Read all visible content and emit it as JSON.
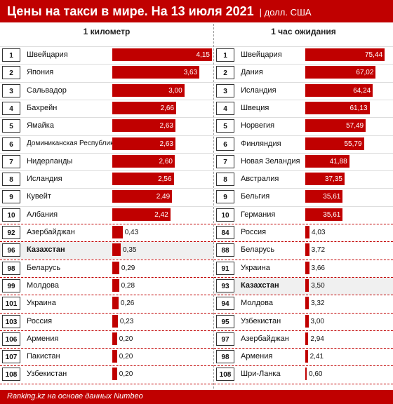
{
  "header": {
    "title": "Цены на такси в мире. На 13 июля 2021",
    "unit": "| долл. США"
  },
  "footer": {
    "source": "Ranking.kz на основе данных Numbeo"
  },
  "chart_data": [
    {
      "type": "bar",
      "title": "1 километр",
      "xlim": [
        0,
        4.15
      ],
      "rows": [
        {
          "rank": "1",
          "country": "Швейцария",
          "value": 4.15,
          "label": "4,15"
        },
        {
          "rank": "2",
          "country": "Япония",
          "value": 3.63,
          "label": "3,63"
        },
        {
          "rank": "3",
          "country": "Сальвадор",
          "value": 3.0,
          "label": "3,00"
        },
        {
          "rank": "4",
          "country": "Бахрейн",
          "value": 2.66,
          "label": "2,66"
        },
        {
          "rank": "5",
          "country": "Ямайка",
          "value": 2.63,
          "label": "2,63"
        },
        {
          "rank": "6",
          "country": "Доминиканская Республика",
          "value": 2.63,
          "label": "2,63"
        },
        {
          "rank": "7",
          "country": "Нидерланды",
          "value": 2.6,
          "label": "2,60"
        },
        {
          "rank": "8",
          "country": "Исландия",
          "value": 2.56,
          "label": "2,56"
        },
        {
          "rank": "9",
          "country": "Кувейт",
          "value": 2.49,
          "label": "2,49"
        },
        {
          "rank": "10",
          "country": "Албания",
          "value": 2.42,
          "label": "2,42"
        },
        {
          "rank": "92",
          "country": "Азербайджан",
          "value": 0.43,
          "label": "0,43"
        },
        {
          "rank": "96",
          "country": "Казахстан",
          "value": 0.35,
          "label": "0,35",
          "highlight": true
        },
        {
          "rank": "98",
          "country": "Беларусь",
          "value": 0.29,
          "label": "0,29"
        },
        {
          "rank": "99",
          "country": "Молдова",
          "value": 0.28,
          "label": "0,28"
        },
        {
          "rank": "101",
          "country": "Украина",
          "value": 0.26,
          "label": "0,26"
        },
        {
          "rank": "103",
          "country": "Россия",
          "value": 0.23,
          "label": "0,23"
        },
        {
          "rank": "106",
          "country": "Армения",
          "value": 0.2,
          "label": "0,20"
        },
        {
          "rank": "107",
          "country": "Пакистан",
          "value": 0.2,
          "label": "0,20"
        },
        {
          "rank": "108",
          "country": "Узбекистан",
          "value": 0.2,
          "label": "0,20"
        }
      ]
    },
    {
      "type": "bar",
      "title": "1 час ожидания",
      "xlim": [
        0,
        75.44
      ],
      "rows": [
        {
          "rank": "1",
          "country": "Швейцария",
          "value": 75.44,
          "label": "75,44"
        },
        {
          "rank": "2",
          "country": "Дания",
          "value": 67.02,
          "label": "67,02"
        },
        {
          "rank": "3",
          "country": "Исландия",
          "value": 64.24,
          "label": "64,24"
        },
        {
          "rank": "4",
          "country": "Швеция",
          "value": 61.13,
          "label": "61,13"
        },
        {
          "rank": "5",
          "country": "Норвегия",
          "value": 57.49,
          "label": "57,49"
        },
        {
          "rank": "6",
          "country": "Финляндия",
          "value": 55.79,
          "label": "55,79"
        },
        {
          "rank": "7",
          "country": "Новая Зеландия",
          "value": 41.88,
          "label": "41,88"
        },
        {
          "rank": "8",
          "country": "Австралия",
          "value": 37.35,
          "label": "37,35"
        },
        {
          "rank": "9",
          "country": "Бельгия",
          "value": 35.61,
          "label": "35,61"
        },
        {
          "rank": "10",
          "country": "Германия",
          "value": 35.61,
          "label": "35,61"
        },
        {
          "rank": "84",
          "country": "Россия",
          "value": 4.03,
          "label": "4,03"
        },
        {
          "rank": "88",
          "country": "Беларусь",
          "value": 3.72,
          "label": "3,72"
        },
        {
          "rank": "91",
          "country": "Украина",
          "value": 3.66,
          "label": "3,66"
        },
        {
          "rank": "93",
          "country": "Казахстан",
          "value": 3.5,
          "label": "3,50",
          "highlight": true
        },
        {
          "rank": "94",
          "country": "Молдова",
          "value": 3.32,
          "label": "3,32"
        },
        {
          "rank": "95",
          "country": "Узбекистан",
          "value": 3.0,
          "label": "3,00"
        },
        {
          "rank": "97",
          "country": "Азербайджан",
          "value": 2.94,
          "label": "2,94"
        },
        {
          "rank": "98",
          "country": "Армения",
          "value": 2.41,
          "label": "2,41"
        },
        {
          "rank": "108",
          "country": "Шри-Ланка",
          "value": 0.6,
          "label": "0,60"
        }
      ]
    }
  ]
}
